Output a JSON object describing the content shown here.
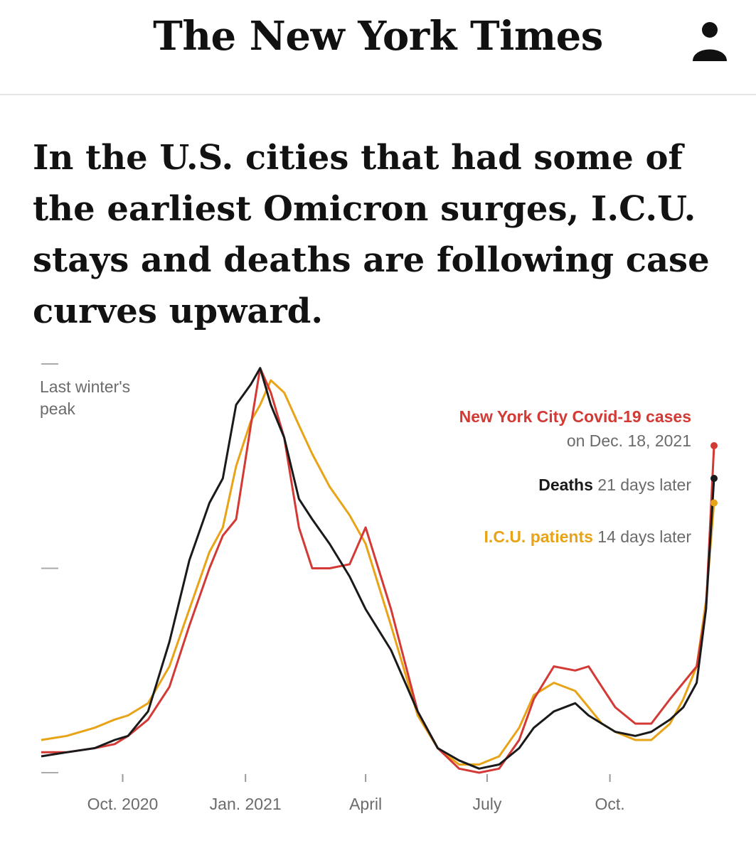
{
  "header": {
    "logo_text": "The New York Times",
    "account_icon": "person-icon"
  },
  "headline": "In the U.S. cities that had some of the earliest Omicron surges, I.C.U. stays and deaths are following case curves upward.",
  "colors": {
    "cases": "#d33a35",
    "deaths": "#1a1a1a",
    "icu": "#e8a317",
    "axis": "#6b6b6b"
  },
  "chart_data": {
    "type": "line",
    "y_reference_label": "Last winter's peak",
    "x_ticks": [
      "Oct. 2020",
      "Jan. 2021",
      "April",
      "July",
      "Oct."
    ],
    "x_range": [
      "2020-08-01",
      "2021-12-18"
    ],
    "y_scale": "relative to last winter's peak",
    "y_range": [
      0,
      1
    ],
    "grid": false,
    "legend_placement": "right",
    "legend": [
      {
        "key": "cases",
        "bold": "New York City Covid-19 cases",
        "rest": "",
        "sub": "on Dec. 18, 2021"
      },
      {
        "key": "deaths",
        "bold": "Deaths",
        "rest": " 21 days later",
        "sub": ""
      },
      {
        "key": "icu",
        "bold": "I.C.U. patients",
        "rest": " 14 days later",
        "sub": ""
      }
    ],
    "series": [
      {
        "key": "cases",
        "points": [
          [
            "2020-08-01",
            0.05
          ],
          [
            "2020-08-20",
            0.05
          ],
          [
            "2020-09-10",
            0.06
          ],
          [
            "2020-09-25",
            0.07
          ],
          [
            "2020-10-05",
            0.09
          ],
          [
            "2020-10-20",
            0.13
          ],
          [
            "2020-11-05",
            0.21
          ],
          [
            "2020-11-20",
            0.36
          ],
          [
            "2020-12-05",
            0.5
          ],
          [
            "2020-12-15",
            0.58
          ],
          [
            "2020-12-25",
            0.62
          ],
          [
            "2021-01-05",
            0.85
          ],
          [
            "2021-01-12",
            0.99
          ],
          [
            "2021-01-20",
            0.93
          ],
          [
            "2021-01-30",
            0.82
          ],
          [
            "2021-02-10",
            0.6
          ],
          [
            "2021-02-20",
            0.5
          ],
          [
            "2021-03-05",
            0.5
          ],
          [
            "2021-03-20",
            0.51
          ],
          [
            "2021-04-01",
            0.6
          ],
          [
            "2021-04-20",
            0.4
          ],
          [
            "2021-05-10",
            0.15
          ],
          [
            "2021-05-25",
            0.06
          ],
          [
            "2021-06-10",
            0.01
          ],
          [
            "2021-06-25",
            0.0
          ],
          [
            "2021-07-10",
            0.01
          ],
          [
            "2021-07-25",
            0.08
          ],
          [
            "2021-08-05",
            0.18
          ],
          [
            "2021-08-20",
            0.26
          ],
          [
            "2021-09-05",
            0.25
          ],
          [
            "2021-09-15",
            0.26
          ],
          [
            "2021-09-25",
            0.21
          ],
          [
            "2021-10-05",
            0.16
          ],
          [
            "2021-10-20",
            0.12
          ],
          [
            "2021-11-01",
            0.12
          ],
          [
            "2021-11-15",
            0.18
          ],
          [
            "2021-11-25",
            0.22
          ],
          [
            "2021-12-05",
            0.26
          ],
          [
            "2021-12-12",
            0.4
          ],
          [
            "2021-12-18",
            0.8
          ]
        ]
      },
      {
        "key": "deaths",
        "points": [
          [
            "2020-08-01",
            0.04
          ],
          [
            "2020-08-20",
            0.05
          ],
          [
            "2020-09-10",
            0.06
          ],
          [
            "2020-09-25",
            0.08
          ],
          [
            "2020-10-05",
            0.09
          ],
          [
            "2020-10-20",
            0.15
          ],
          [
            "2020-11-05",
            0.32
          ],
          [
            "2020-11-20",
            0.52
          ],
          [
            "2020-12-05",
            0.66
          ],
          [
            "2020-12-15",
            0.72
          ],
          [
            "2020-12-25",
            0.9
          ],
          [
            "2021-01-05",
            0.95
          ],
          [
            "2021-01-12",
            0.99
          ],
          [
            "2021-01-20",
            0.9
          ],
          [
            "2021-01-30",
            0.82
          ],
          [
            "2021-02-10",
            0.67
          ],
          [
            "2021-02-20",
            0.62
          ],
          [
            "2021-03-05",
            0.56
          ],
          [
            "2021-03-20",
            0.48
          ],
          [
            "2021-04-01",
            0.4
          ],
          [
            "2021-04-20",
            0.3
          ],
          [
            "2021-05-10",
            0.15
          ],
          [
            "2021-05-25",
            0.06
          ],
          [
            "2021-06-10",
            0.03
          ],
          [
            "2021-06-25",
            0.01
          ],
          [
            "2021-07-10",
            0.02
          ],
          [
            "2021-07-25",
            0.06
          ],
          [
            "2021-08-05",
            0.11
          ],
          [
            "2021-08-20",
            0.15
          ],
          [
            "2021-09-05",
            0.17
          ],
          [
            "2021-09-15",
            0.14
          ],
          [
            "2021-09-25",
            0.12
          ],
          [
            "2021-10-05",
            0.1
          ],
          [
            "2021-10-20",
            0.09
          ],
          [
            "2021-11-01",
            0.1
          ],
          [
            "2021-11-15",
            0.13
          ],
          [
            "2021-11-25",
            0.16
          ],
          [
            "2021-12-05",
            0.22
          ],
          [
            "2021-12-12",
            0.4
          ],
          [
            "2021-12-18",
            0.72
          ]
        ]
      },
      {
        "key": "icu",
        "points": [
          [
            "2020-08-01",
            0.08
          ],
          [
            "2020-08-20",
            0.09
          ],
          [
            "2020-09-10",
            0.11
          ],
          [
            "2020-09-25",
            0.13
          ],
          [
            "2020-10-05",
            0.14
          ],
          [
            "2020-10-20",
            0.17
          ],
          [
            "2020-11-05",
            0.26
          ],
          [
            "2020-11-20",
            0.4
          ],
          [
            "2020-12-05",
            0.54
          ],
          [
            "2020-12-15",
            0.6
          ],
          [
            "2020-12-25",
            0.75
          ],
          [
            "2021-01-05",
            0.86
          ],
          [
            "2021-01-12",
            0.9
          ],
          [
            "2021-01-20",
            0.96
          ],
          [
            "2021-01-30",
            0.93
          ],
          [
            "2021-02-10",
            0.85
          ],
          [
            "2021-02-20",
            0.78
          ],
          [
            "2021-03-05",
            0.7
          ],
          [
            "2021-03-20",
            0.63
          ],
          [
            "2021-04-01",
            0.56
          ],
          [
            "2021-04-20",
            0.36
          ],
          [
            "2021-05-10",
            0.14
          ],
          [
            "2021-05-25",
            0.06
          ],
          [
            "2021-06-10",
            0.02
          ],
          [
            "2021-06-25",
            0.02
          ],
          [
            "2021-07-10",
            0.04
          ],
          [
            "2021-07-25",
            0.11
          ],
          [
            "2021-08-05",
            0.19
          ],
          [
            "2021-08-20",
            0.22
          ],
          [
            "2021-09-05",
            0.2
          ],
          [
            "2021-09-15",
            0.16
          ],
          [
            "2021-09-25",
            0.12
          ],
          [
            "2021-10-05",
            0.1
          ],
          [
            "2021-10-20",
            0.08
          ],
          [
            "2021-11-01",
            0.08
          ],
          [
            "2021-11-15",
            0.12
          ],
          [
            "2021-11-25",
            0.18
          ],
          [
            "2021-12-05",
            0.26
          ],
          [
            "2021-12-12",
            0.42
          ],
          [
            "2021-12-18",
            0.66
          ]
        ]
      }
    ]
  }
}
